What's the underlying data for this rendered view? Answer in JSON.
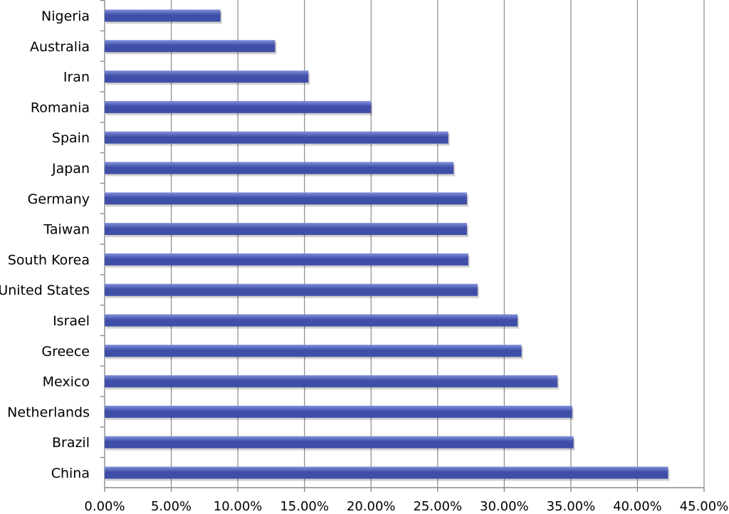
{
  "chart_data": {
    "type": "bar",
    "orientation": "horizontal",
    "categories": [
      "Nigeria",
      "Australia",
      "Iran",
      "Romania",
      "Spain",
      "Japan",
      "Germany",
      "Taiwan",
      "South Korea",
      "United States",
      "Israel",
      "Greece",
      "Mexico",
      "Netherlands",
      "Brazil",
      "China"
    ],
    "values": [
      8.7,
      12.8,
      15.3,
      20.0,
      25.8,
      26.2,
      27.2,
      27.2,
      27.3,
      28.0,
      31.0,
      31.3,
      34.0,
      35.1,
      35.2,
      42.3
    ],
    "value_unit": "%",
    "xlim": [
      0,
      45
    ],
    "x_ticks": [
      "0.00%",
      "5.00%",
      "10.00%",
      "15.00%",
      "20.00%",
      "25.00%",
      "30.00%",
      "35.00%",
      "40.00%",
      "45.00%"
    ],
    "title": "",
    "xlabel": "",
    "ylabel": "",
    "grid": true,
    "legend": "none",
    "bar_color": "#3F4FA8",
    "bar_highlight_color": "#8290DA",
    "grid_color": "#8a8a8a"
  }
}
